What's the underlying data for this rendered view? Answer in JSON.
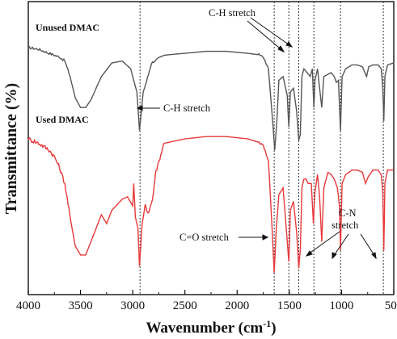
{
  "chart_data": {
    "type": "line",
    "xlabel": "Wavenumber (cm",
    "xlabel_superscript": "-1",
    "xlabel_suffix": ")",
    "ylabel": "Transmittance (%)",
    "xlim": [
      4000,
      500
    ],
    "x_reversed": true,
    "y_ticks_shown": false,
    "grid": false,
    "xticks": [
      4000,
      3500,
      3000,
      2500,
      2000,
      1500,
      1000,
      500
    ],
    "series": [
      {
        "name": "Unused DMAC",
        "color": "#555555",
        "points": [
          [
            4000,
            0.53
          ],
          [
            3900,
            0.52
          ],
          [
            3800,
            0.5
          ],
          [
            3700,
            0.48
          ],
          [
            3650,
            0.46
          ],
          [
            3600,
            0.38
          ],
          [
            3550,
            0.27
          ],
          [
            3500,
            0.22
          ],
          [
            3450,
            0.22
          ],
          [
            3400,
            0.26
          ],
          [
            3300,
            0.38
          ],
          [
            3200,
            0.45
          ],
          [
            3100,
            0.46
          ],
          [
            3020,
            0.42
          ],
          [
            2990,
            0.36
          ],
          [
            2960,
            0.3
          ],
          [
            2935,
            0.1
          ],
          [
            2900,
            0.3
          ],
          [
            2870,
            0.35
          ],
          [
            2820,
            0.45
          ],
          [
            2700,
            0.49
          ],
          [
            2500,
            0.5
          ],
          [
            2300,
            0.51
          ],
          [
            2100,
            0.51
          ],
          [
            1900,
            0.5
          ],
          [
            1760,
            0.49
          ],
          [
            1700,
            0.42
          ],
          [
            1660,
            0.15
          ],
          [
            1640,
            0.0
          ],
          [
            1620,
            0.15
          ],
          [
            1600,
            0.36
          ],
          [
            1560,
            0.38
          ],
          [
            1520,
            0.28
          ],
          [
            1505,
            0.12
          ],
          [
            1490,
            0.3
          ],
          [
            1460,
            0.32
          ],
          [
            1430,
            0.2
          ],
          [
            1410,
            0.05
          ],
          [
            1395,
            0.08
          ],
          [
            1380,
            0.38
          ],
          [
            1360,
            0.42
          ],
          [
            1330,
            0.4
          ],
          [
            1300,
            0.38
          ],
          [
            1280,
            0.42
          ],
          [
            1265,
            0.22
          ],
          [
            1255,
            0.36
          ],
          [
            1230,
            0.42
          ],
          [
            1190,
            0.22
          ],
          [
            1170,
            0.38
          ],
          [
            1100,
            0.4
          ],
          [
            1070,
            0.38
          ],
          [
            1050,
            0.35
          ],
          [
            1030,
            0.36
          ],
          [
            1010,
            0.1
          ],
          [
            995,
            0.38
          ],
          [
            960,
            0.42
          ],
          [
            900,
            0.44
          ],
          [
            850,
            0.44
          ],
          [
            800,
            0.43
          ],
          [
            760,
            0.38
          ],
          [
            740,
            0.43
          ],
          [
            700,
            0.44
          ],
          [
            650,
            0.44
          ],
          [
            620,
            0.42
          ],
          [
            605,
            0.32
          ],
          [
            595,
            0.15
          ],
          [
            585,
            0.38
          ],
          [
            560,
            0.44
          ],
          [
            500,
            0.45
          ]
        ]
      },
      {
        "name": "Used DMAC",
        "color": "#e8383a",
        "points": [
          [
            4000,
            0.6
          ],
          [
            3900,
            0.58
          ],
          [
            3800,
            0.55
          ],
          [
            3750,
            0.52
          ],
          [
            3700,
            0.47
          ],
          [
            3650,
            0.4
          ],
          [
            3600,
            0.25
          ],
          [
            3550,
            0.12
          ],
          [
            3500,
            0.08
          ],
          [
            3450,
            0.08
          ],
          [
            3400,
            0.14
          ],
          [
            3350,
            0.2
          ],
          [
            3300,
            0.26
          ],
          [
            3250,
            0.22
          ],
          [
            3200,
            0.28
          ],
          [
            3100,
            0.33
          ],
          [
            3050,
            0.34
          ],
          [
            3000,
            0.3
          ],
          [
            2990,
            0.4
          ],
          [
            2975,
            0.25
          ],
          [
            2950,
            0.2
          ],
          [
            2935,
            0.03
          ],
          [
            2910,
            0.22
          ],
          [
            2880,
            0.3
          ],
          [
            2850,
            0.27
          ],
          [
            2810,
            0.33
          ],
          [
            2780,
            0.45
          ],
          [
            2700,
            0.58
          ],
          [
            2500,
            0.6
          ],
          [
            2300,
            0.61
          ],
          [
            2100,
            0.61
          ],
          [
            1900,
            0.6
          ],
          [
            1760,
            0.58
          ],
          [
            1700,
            0.5
          ],
          [
            1665,
            0.2
          ],
          [
            1645,
            0.0
          ],
          [
            1625,
            0.2
          ],
          [
            1600,
            0.35
          ],
          [
            1560,
            0.38
          ],
          [
            1530,
            0.2
          ],
          [
            1505,
            0.05
          ],
          [
            1490,
            0.28
          ],
          [
            1460,
            0.32
          ],
          [
            1430,
            0.18
          ],
          [
            1410,
            0.02
          ],
          [
            1395,
            0.1
          ],
          [
            1380,
            0.38
          ],
          [
            1360,
            0.42
          ],
          [
            1340,
            0.42
          ],
          [
            1320,
            0.4
          ],
          [
            1290,
            0.4
          ],
          [
            1270,
            0.22
          ],
          [
            1255,
            0.36
          ],
          [
            1230,
            0.44
          ],
          [
            1210,
            0.34
          ],
          [
            1190,
            0.14
          ],
          [
            1170,
            0.38
          ],
          [
            1130,
            0.45
          ],
          [
            1100,
            0.44
          ],
          [
            1070,
            0.42
          ],
          [
            1040,
            0.38
          ],
          [
            1020,
            0.3
          ],
          [
            1010,
            0.1
          ],
          [
            995,
            0.4
          ],
          [
            960,
            0.44
          ],
          [
            900,
            0.46
          ],
          [
            850,
            0.46
          ],
          [
            800,
            0.45
          ],
          [
            770,
            0.4
          ],
          [
            745,
            0.43
          ],
          [
            700,
            0.46
          ],
          [
            650,
            0.46
          ],
          [
            620,
            0.44
          ],
          [
            605,
            0.36
          ],
          [
            595,
            0.1
          ],
          [
            585,
            0.4
          ],
          [
            560,
            0.46
          ],
          [
            500,
            0.46
          ]
        ]
      }
    ],
    "vertical_lines": [
      2930,
      1645,
      1505,
      1410,
      1265,
      1010,
      600
    ],
    "annotations": [
      {
        "id": "ch-stretch-top",
        "text": "C-H stretch"
      },
      {
        "id": "ch-stretch-mid",
        "text": "C-H stretch"
      },
      {
        "id": "co-stretch",
        "text": "C=O stretch"
      },
      {
        "id": "cn-stretch-1",
        "text": "C-N"
      },
      {
        "id": "cn-stretch-2",
        "text": "stretch"
      }
    ]
  }
}
